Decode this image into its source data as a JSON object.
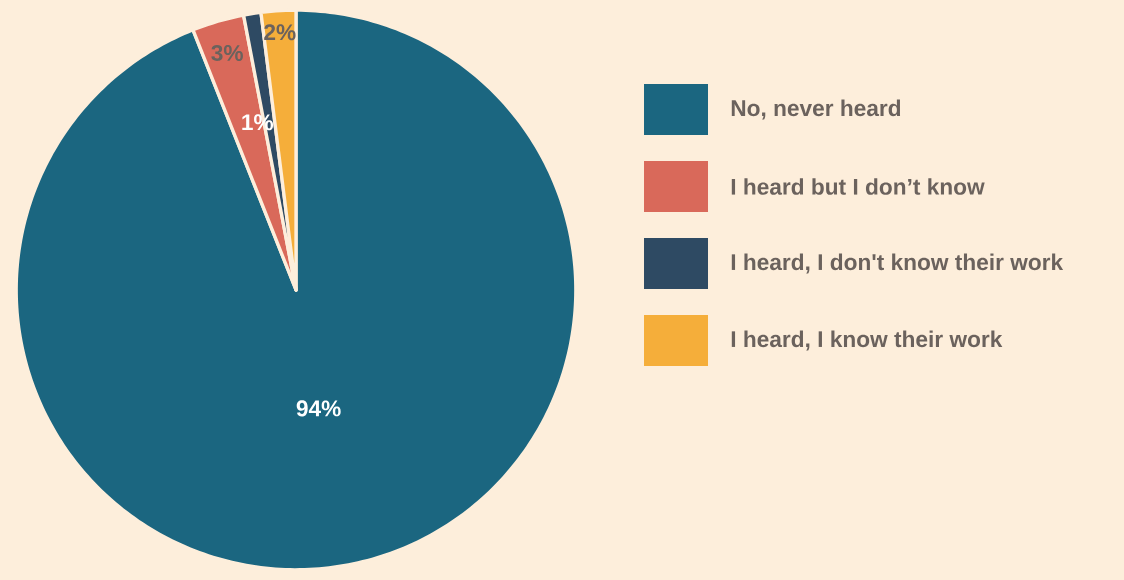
{
  "chart_data": {
    "type": "pie",
    "categories": [
      "No, never heard",
      "I heard but I don’t know",
      "I heard, I don't know their work",
      "I heard, I know their work"
    ],
    "values": [
      94,
      3,
      1,
      2
    ],
    "colors": [
      "#1b6680",
      "#d9695a",
      "#2e4a63",
      "#f5ae3a"
    ],
    "value_labels": [
      "94%",
      "3%",
      "1%",
      "2%"
    ],
    "legend": "right"
  }
}
